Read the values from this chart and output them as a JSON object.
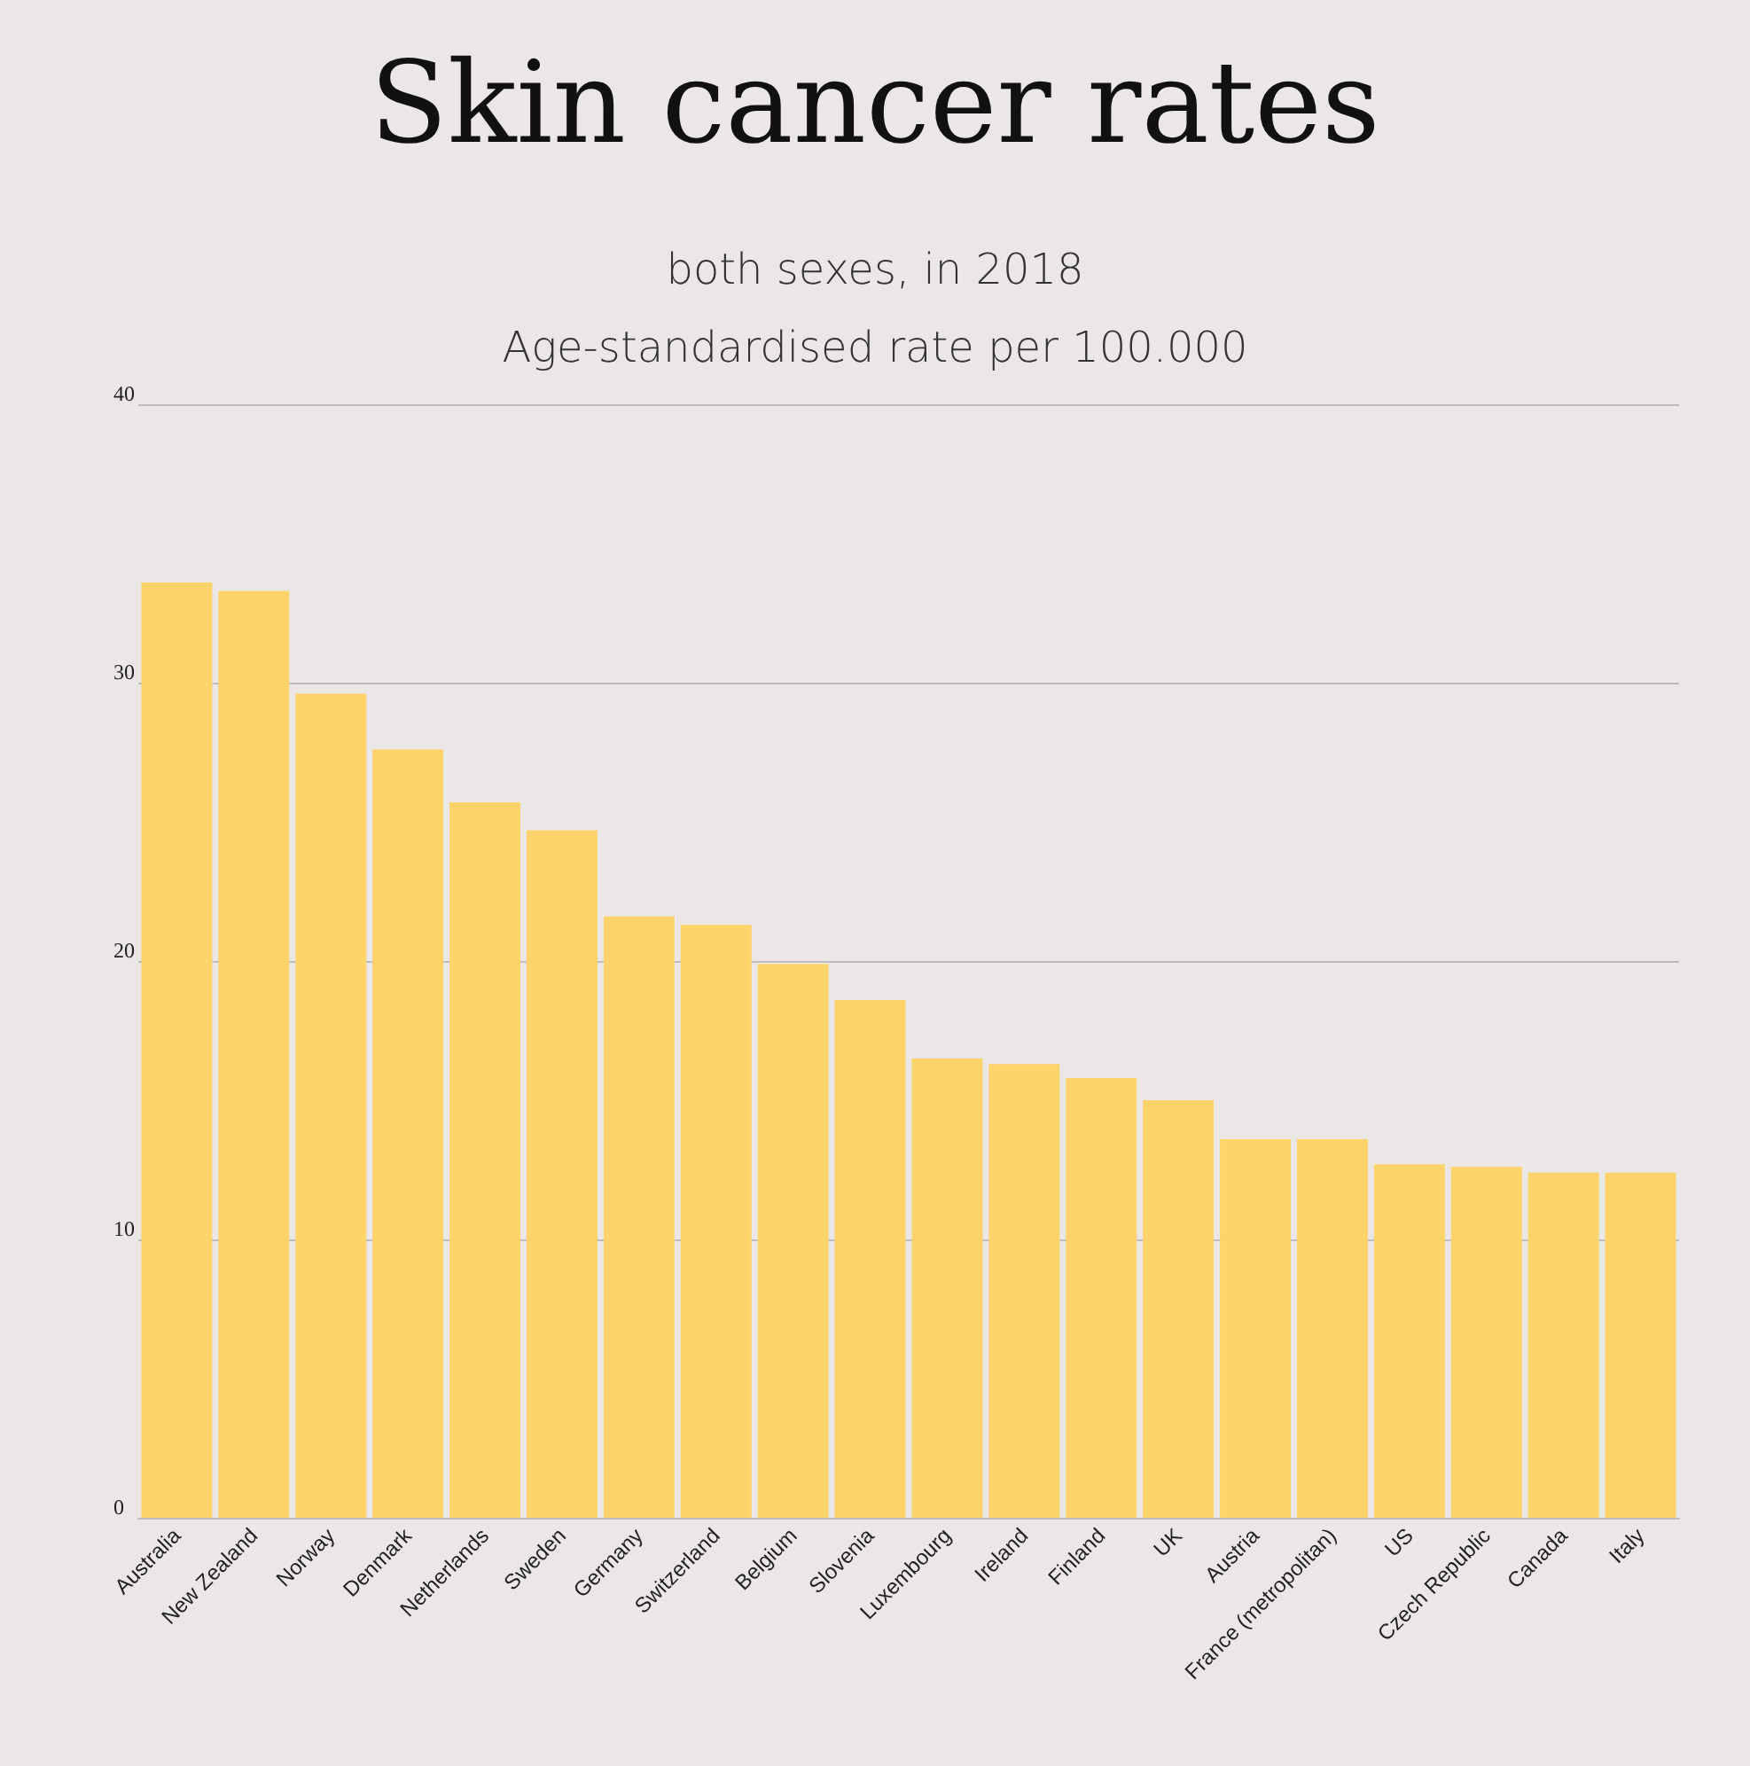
{
  "chart_data": {
    "type": "bar",
    "title": "Skin cancer rates",
    "subtitle": "both sexes, in 2018\nAge-standardised rate per 100.000",
    "categories": [
      "Australia",
      "New Zealand",
      "Norway",
      "Denmark",
      "Netherlands",
      "Sweden",
      "Germany",
      "Switzerland",
      "Belgium",
      "Slovenia",
      "Luxembourg",
      "Ireland",
      "Finland",
      "UK",
      "Austria",
      "France (metropolitan)",
      "US",
      "Czech Republic",
      "Canada",
      "Italy"
    ],
    "values": [
      33.6,
      33.3,
      29.6,
      27.6,
      25.7,
      24.7,
      21.6,
      21.3,
      19.9,
      18.6,
      16.5,
      16.3,
      15.8,
      15.0,
      13.6,
      13.6,
      12.7,
      12.6,
      12.4,
      12.4
    ],
    "color": "#fed36a",
    "ylim": [
      0,
      40
    ],
    "yticks": [
      0,
      10,
      20,
      30,
      40
    ],
    "grid": "y"
  }
}
